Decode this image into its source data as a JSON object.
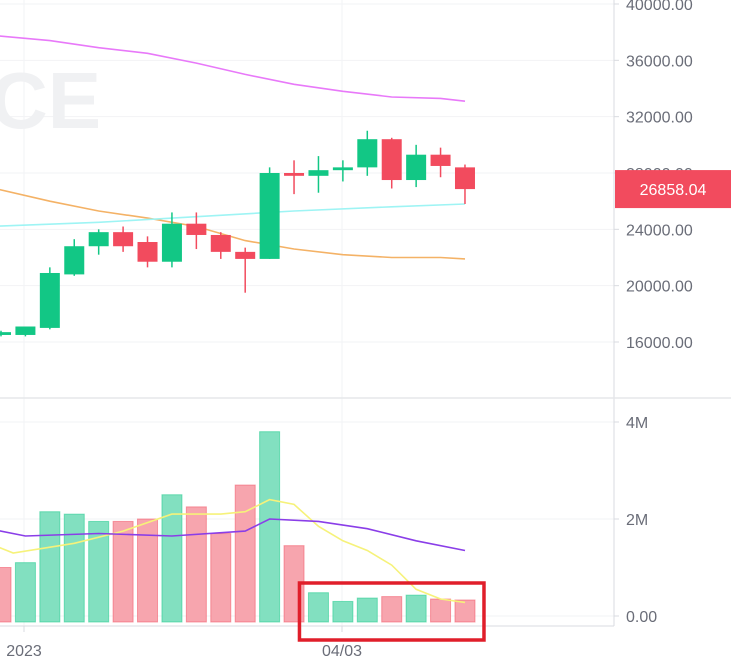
{
  "watermark": "CE",
  "colors": {
    "up": "#12c785",
    "down": "#f24b5e",
    "volume_up": "#82e0c0",
    "volume_down": "#f7a5ae",
    "ma_violet": "#e879f9",
    "ma_orange": "#f4b266",
    "ma_cyan": "#9ef4f4",
    "vol_ma_yellow": "#f6f27a",
    "vol_ma_purple": "#8a3ee8",
    "highlight": "#e01e2a",
    "grid": "#f2f3f5",
    "axis": "#d9dbe0"
  },
  "last_price": {
    "value": 26858.04,
    "label": "26858.04"
  },
  "chart_data": [
    {
      "type": "candlestick",
      "y_ticks": [
        "16000.00",
        "20000.00",
        "24000.00",
        "28000.00",
        "32000.00",
        "36000.00",
        "40000.00"
      ],
      "ylim": [
        11000,
        40000
      ],
      "x_ticks": [
        "2023",
        "04/03"
      ],
      "candles": [
        {
          "o": 16500,
          "h": 16800,
          "l": 16400,
          "c": 16700
        },
        {
          "o": 16500,
          "h": 17100,
          "l": 16400,
          "c": 17100
        },
        {
          "o": 17000,
          "h": 21300,
          "l": 16900,
          "c": 20900
        },
        {
          "o": 20800,
          "h": 23300,
          "l": 20700,
          "c": 22800
        },
        {
          "o": 22800,
          "h": 24000,
          "l": 22200,
          "c": 23800
        },
        {
          "o": 23800,
          "h": 24200,
          "l": 22400,
          "c": 22800
        },
        {
          "o": 23100,
          "h": 23500,
          "l": 21300,
          "c": 21700
        },
        {
          "o": 21700,
          "h": 25200,
          "l": 21300,
          "c": 24400
        },
        {
          "o": 24400,
          "h": 25200,
          "l": 22600,
          "c": 23600
        },
        {
          "o": 23600,
          "h": 23800,
          "l": 21900,
          "c": 22400
        },
        {
          "o": 22400,
          "h": 22700,
          "l": 19500,
          "c": 21900
        },
        {
          "o": 21900,
          "h": 28400,
          "l": 21900,
          "c": 28000
        },
        {
          "o": 28000,
          "h": 28900,
          "l": 26500,
          "c": 27800
        },
        {
          "o": 27800,
          "h": 29200,
          "l": 26600,
          "c": 28200
        },
        {
          "o": 28200,
          "h": 28900,
          "l": 27400,
          "c": 28400
        },
        {
          "o": 28400,
          "h": 31000,
          "l": 27800,
          "c": 30400
        },
        {
          "o": 30400,
          "h": 30500,
          "l": 26900,
          "c": 27500
        },
        {
          "o": 27500,
          "h": 30000,
          "l": 27000,
          "c": 29300
        },
        {
          "o": 29300,
          "h": 29800,
          "l": 27700,
          "c": 28500
        },
        {
          "o": 28400,
          "h": 28600,
          "l": 25800,
          "c": 26858.04
        }
      ],
      "moving_averages": [
        {
          "color_key": "ma_violet",
          "points": [
            [
              -0.5,
              37800
            ],
            [
              2,
              37400
            ],
            [
              4,
              36900
            ],
            [
              6,
              36500
            ],
            [
              8,
              35800
            ],
            [
              10,
              35000
            ],
            [
              12,
              34300
            ],
            [
              14,
              33800
            ],
            [
              16,
              33400
            ],
            [
              18,
              33300
            ],
            [
              19,
              33100
            ]
          ]
        },
        {
          "color_key": "ma_orange",
          "points": [
            [
              -0.5,
              27000
            ],
            [
              2,
              26000
            ],
            [
              4,
              25300
            ],
            [
              6,
              24800
            ],
            [
              8,
              24200
            ],
            [
              10,
              23200
            ],
            [
              12,
              22600
            ],
            [
              14,
              22200
            ],
            [
              16,
              22000
            ],
            [
              18,
              22000
            ],
            [
              19,
              21900
            ]
          ]
        },
        {
          "color_key": "ma_cyan",
          "points": [
            [
              -0.5,
              24200
            ],
            [
              4,
              24500
            ],
            [
              8,
              24900
            ],
            [
              12,
              25300
            ],
            [
              16,
              25600
            ],
            [
              19,
              25800
            ]
          ]
        }
      ]
    },
    {
      "type": "bar",
      "y_ticks": [
        "0.00",
        "2M",
        "4M"
      ],
      "ylim": [
        0,
        4000000
      ],
      "volumes": [
        {
          "v": 1000000,
          "up": false
        },
        {
          "v": 1100000,
          "up": true
        },
        {
          "v": 2150000,
          "up": true
        },
        {
          "v": 2100000,
          "up": true
        },
        {
          "v": 1950000,
          "up": true
        },
        {
          "v": 1950000,
          "up": false
        },
        {
          "v": 2000000,
          "up": false
        },
        {
          "v": 2500000,
          "up": true
        },
        {
          "v": 2250000,
          "up": false
        },
        {
          "v": 1700000,
          "up": false
        },
        {
          "v": 2700000,
          "up": false
        },
        {
          "v": 3800000,
          "up": true
        },
        {
          "v": 1450000,
          "up": false
        },
        {
          "v": 480000,
          "up": true
        },
        {
          "v": 300000,
          "up": true
        },
        {
          "v": 370000,
          "up": true
        },
        {
          "v": 400000,
          "up": false
        },
        {
          "v": 430000,
          "up": true
        },
        {
          "v": 350000,
          "up": false
        },
        {
          "v": 330000,
          "up": false
        }
      ],
      "moving_averages": [
        {
          "color_key": "vol_ma_yellow",
          "points": [
            [
              -0.5,
              1500000
            ],
            [
              0.5,
              1300000
            ],
            [
              3,
              1500000
            ],
            [
              5,
              1750000
            ],
            [
              7,
              2100000
            ],
            [
              9,
              2100000
            ],
            [
              10,
              2150000
            ],
            [
              11,
              2400000
            ],
            [
              12,
              2300000
            ],
            [
              13,
              1850000
            ],
            [
              14,
              1550000
            ],
            [
              15,
              1350000
            ],
            [
              16,
              1050000
            ],
            [
              17,
              550000
            ],
            [
              18,
              350000
            ],
            [
              19,
              280000
            ]
          ]
        },
        {
          "color_key": "vol_ma_purple",
          "points": [
            [
              -0.5,
              1800000
            ],
            [
              1,
              1650000
            ],
            [
              4,
              1700000
            ],
            [
              7,
              1650000
            ],
            [
              10,
              1750000
            ],
            [
              11,
              2000000
            ],
            [
              13,
              1950000
            ],
            [
              15,
              1800000
            ],
            [
              17,
              1550000
            ],
            [
              19,
              1350000
            ]
          ]
        }
      ],
      "highlight": {
        "from": 13,
        "to": 19
      }
    }
  ]
}
